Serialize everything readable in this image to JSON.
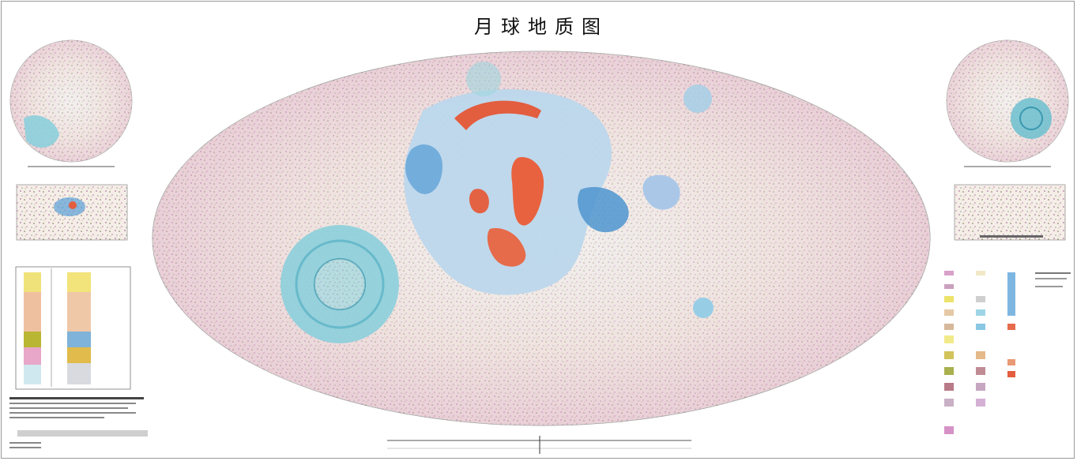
{
  "map": {
    "title": "月球地质图",
    "left_inset_title": "",
    "right_inset_title": "",
    "bottom_scale_label": "",
    "colors": {
      "background": "#fbf8f3",
      "mare_blue": "#8ec6e7",
      "basin_cyan": "#89d1de",
      "fire_red": "#ea6a4b",
      "pink": "#d9a0c8",
      "tan": "#d7b89b",
      "yellow": "#ece36a"
    }
  }
}
